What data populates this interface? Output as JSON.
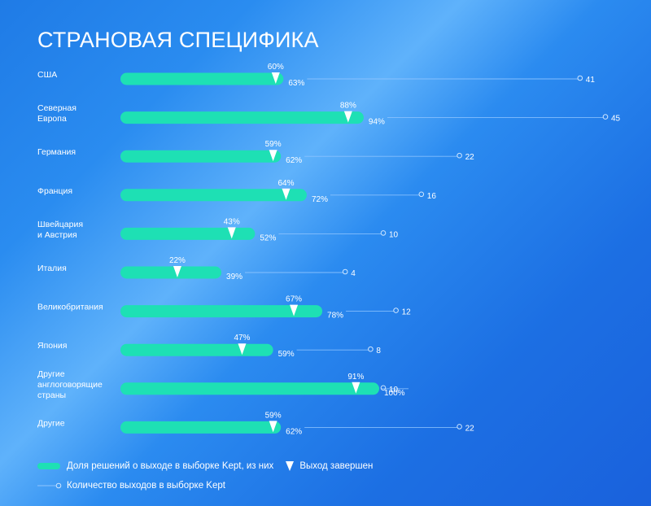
{
  "title": "СТРАНОВАЯ СПЕЦИФИКА",
  "colors": {
    "bar": "#1ee0b4",
    "line": "#8ec4ff",
    "marker": "#ffffff"
  },
  "legend": {
    "bar_label": "Доля решений о выходе в выборке Kept, из них",
    "marker_label": "Выход завершен",
    "line_label": "Количество выходов в выборке Kept"
  },
  "chart_data": {
    "type": "bar",
    "title": "СТРАНОВАЯ СПЕЦИФИКА",
    "categories": [
      [
        "США"
      ],
      [
        "Северная",
        "Европа"
      ],
      [
        "Германия"
      ],
      [
        "Франция"
      ],
      [
        "Швейцария",
        "и Австрия"
      ],
      [
        "Италия"
      ],
      [
        "Великобритания"
      ],
      [
        "Япония"
      ],
      [
        "Другие",
        "англоговорящие",
        "страны"
      ],
      [
        "Другие"
      ]
    ],
    "series": [
      {
        "name": "Доля решений о выходе в выборке Kept, из них",
        "unit": "%",
        "values": [
          63,
          94,
          62,
          72,
          52,
          39,
          78,
          59,
          100,
          62
        ]
      },
      {
        "name": "Выход завершен",
        "unit": "%",
        "values": [
          60,
          88,
          59,
          64,
          43,
          22,
          67,
          47,
          91,
          59
        ]
      },
      {
        "name": "Количество выходов в выборке Kept",
        "values": [
          41,
          45,
          22,
          16,
          10,
          4,
          12,
          8,
          10,
          22
        ]
      }
    ]
  }
}
